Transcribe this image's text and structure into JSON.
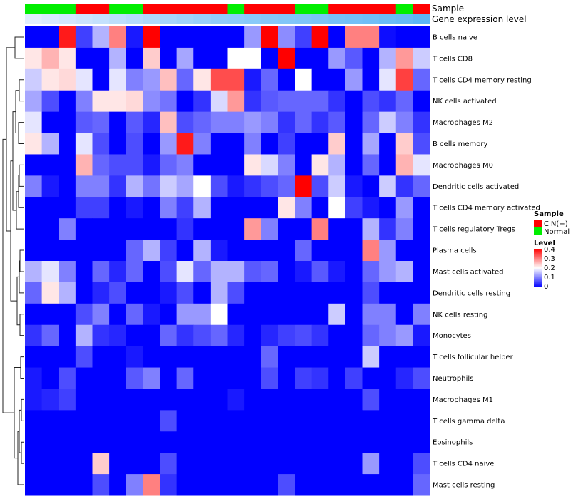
{
  "chart_data": {
    "type": "heatmap",
    "rows": [
      "B cells naive",
      "T cells CD8",
      "T cells CD4 memory resting",
      "NK cells activated",
      "Macrophages M2",
      "B cells memory",
      "Macrophages M0",
      "Dendritic cells activated",
      "T cells CD4 memory activated",
      "T cells regulatory  Tregs",
      "Plasma cells",
      "Mast cells activated",
      "Dendritic cells resting",
      "NK cells resting",
      "Monocytes",
      "T cells follicular helper",
      "Neutrophils",
      "Macrophages M1",
      "T cells gamma delta",
      "Eosinophils",
      "T cells CD4 naive",
      "Mast cells resting"
    ],
    "columns_count": 24,
    "sample": [
      "Normal",
      "Normal",
      "Normal",
      "CIN(+)",
      "CIN(+)",
      "Normal",
      "Normal",
      "CIN(+)",
      "CIN(+)",
      "CIN(+)",
      "CIN(+)",
      "CIN(+)",
      "Normal",
      "CIN(+)",
      "CIN(+)",
      "CIN(+)",
      "Normal",
      "Normal",
      "CIN(+)",
      "CIN(+)",
      "CIN(+)",
      "CIN(+)",
      "Normal",
      "CIN(+)"
    ],
    "gene_expression_level": [
      0.05,
      0.1,
      0.15,
      0.2,
      0.25,
      0.3,
      0.35,
      0.4,
      0.45,
      0.5,
      0.55,
      0.6,
      0.62,
      0.65,
      0.68,
      0.7,
      0.72,
      0.75,
      0.78,
      0.8,
      0.83,
      0.86,
      0.9,
      0.95
    ],
    "values": [
      [
        0.0,
        0.0,
        0.38,
        0.05,
        0.14,
        0.3,
        0.02,
        0.4,
        0.0,
        0.0,
        0.0,
        0.0,
        0.0,
        0.12,
        0.4,
        0.11,
        0.05,
        0.4,
        0.0,
        0.3,
        0.3,
        0.01,
        0.0,
        0.0
      ],
      [
        0.22,
        0.26,
        0.22,
        0.0,
        0.0,
        0.14,
        0.0,
        0.24,
        0.0,
        0.13,
        0.0,
        0.0,
        0.2,
        0.2,
        0.0,
        0.4,
        0.0,
        0.0,
        0.12,
        0.07,
        0.0,
        0.14,
        0.28,
        0.16
      ],
      [
        0.16,
        0.22,
        0.23,
        0.18,
        0.0,
        0.18,
        0.1,
        0.12,
        0.25,
        0.08,
        0.22,
        0.34,
        0.34,
        0.02,
        0.08,
        0.0,
        0.2,
        0.0,
        0.0,
        0.12,
        0.0,
        0.18,
        0.35,
        0.08
      ],
      [
        0.13,
        0.06,
        0.0,
        0.1,
        0.22,
        0.22,
        0.23,
        0.11,
        0.09,
        0.0,
        0.04,
        0.17,
        0.28,
        0.04,
        0.07,
        0.08,
        0.08,
        0.08,
        0.04,
        0.0,
        0.06,
        0.04,
        0.08,
        0.0
      ],
      [
        0.18,
        0.0,
        0.0,
        0.07,
        0.08,
        0.0,
        0.07,
        0.03,
        0.25,
        0.06,
        0.08,
        0.1,
        0.1,
        0.12,
        0.1,
        0.04,
        0.08,
        0.04,
        0.07,
        0.0,
        0.08,
        0.16,
        0.1,
        0.04
      ],
      [
        0.22,
        0.14,
        0.0,
        0.18,
        0.06,
        0.0,
        0.06,
        0.0,
        0.12,
        0.38,
        0.1,
        0.0,
        0.0,
        0.1,
        0.0,
        0.05,
        0.0,
        0.0,
        0.24,
        0.0,
        0.13,
        0.0,
        0.24,
        0.06
      ],
      [
        0.0,
        0.0,
        0.0,
        0.26,
        0.08,
        0.06,
        0.06,
        0.02,
        0.08,
        0.1,
        0.0,
        0.0,
        0.0,
        0.22,
        0.17,
        0.1,
        0.0,
        0.22,
        0.14,
        0.0,
        0.08,
        0.0,
        0.26,
        0.18
      ],
      [
        0.1,
        0.02,
        0.0,
        0.1,
        0.1,
        0.04,
        0.14,
        0.09,
        0.16,
        0.13,
        0.2,
        0.06,
        0.02,
        0.04,
        0.06,
        0.08,
        0.4,
        0.06,
        0.16,
        0.02,
        0.0,
        0.16,
        0.04,
        0.08
      ],
      [
        0.0,
        0.0,
        0.0,
        0.05,
        0.05,
        0.0,
        0.02,
        0.0,
        0.1,
        0.05,
        0.14,
        0.0,
        0.0,
        0.0,
        0.0,
        0.22,
        0.1,
        0.0,
        0.2,
        0.05,
        0.02,
        0.0,
        0.12,
        0.0
      ],
      [
        0.0,
        0.0,
        0.1,
        0.0,
        0.0,
        0.0,
        0.0,
        0.0,
        0.0,
        0.04,
        0.0,
        0.0,
        0.0,
        0.28,
        0.1,
        0.0,
        0.0,
        0.3,
        0.0,
        0.0,
        0.14,
        0.04,
        0.1,
        0.0
      ],
      [
        0.0,
        0.0,
        0.0,
        0.0,
        0.0,
        0.0,
        0.08,
        0.14,
        0.05,
        0.0,
        0.14,
        0.02,
        0.0,
        0.0,
        0.0,
        0.0,
        0.08,
        0.0,
        0.0,
        0.0,
        0.3,
        0.12,
        0.0,
        0.0
      ],
      [
        0.14,
        0.18,
        0.1,
        0.0,
        0.08,
        0.03,
        0.08,
        0.0,
        0.06,
        0.18,
        0.08,
        0.14,
        0.14,
        0.07,
        0.08,
        0.0,
        0.02,
        0.07,
        0.02,
        0.0,
        0.08,
        0.12,
        0.14,
        0.0
      ],
      [
        0.08,
        0.22,
        0.14,
        0.0,
        0.03,
        0.06,
        0.0,
        0.0,
        0.02,
        0.06,
        0.0,
        0.14,
        0.06,
        0.0,
        0.0,
        0.0,
        0.0,
        0.0,
        0.0,
        0.0,
        0.06,
        0.0,
        0.0,
        0.0
      ],
      [
        0.0,
        0.0,
        0.0,
        0.06,
        0.1,
        0.0,
        0.08,
        0.02,
        0.0,
        0.12,
        0.12,
        0.2,
        0.0,
        0.0,
        0.0,
        0.0,
        0.0,
        0.0,
        0.16,
        0.0,
        0.1,
        0.1,
        0.0,
        0.1
      ],
      [
        0.04,
        0.08,
        0.0,
        0.14,
        0.04,
        0.03,
        0.0,
        0.0,
        0.08,
        0.04,
        0.06,
        0.08,
        0.03,
        0.0,
        0.03,
        0.05,
        0.06,
        0.04,
        0.0,
        0.0,
        0.08,
        0.1,
        0.12,
        0.02
      ],
      [
        0.0,
        0.0,
        0.0,
        0.06,
        0.0,
        0.0,
        0.02,
        0.0,
        0.0,
        0.0,
        0.0,
        0.0,
        0.0,
        0.0,
        0.08,
        0.0,
        0.0,
        0.0,
        0.0,
        0.0,
        0.16,
        0.0,
        0.0,
        0.0
      ],
      [
        0.02,
        0.0,
        0.06,
        0.0,
        0.0,
        0.0,
        0.07,
        0.1,
        0.0,
        0.08,
        0.0,
        0.0,
        0.0,
        0.0,
        0.06,
        0.0,
        0.05,
        0.04,
        0.0,
        0.05,
        0.0,
        0.0,
        0.03,
        0.06
      ],
      [
        0.02,
        0.03,
        0.05,
        0.0,
        0.0,
        0.0,
        0.0,
        0.0,
        0.0,
        0.0,
        0.0,
        0.0,
        0.02,
        0.0,
        0.0,
        0.0,
        0.0,
        0.0,
        0.0,
        0.0,
        0.06,
        0.0,
        0.0,
        0.0
      ],
      [
        0.0,
        0.0,
        0.0,
        0.0,
        0.0,
        0.0,
        0.0,
        0.0,
        0.06,
        0.0,
        0.0,
        0.0,
        0.0,
        0.0,
        0.0,
        0.0,
        0.0,
        0.0,
        0.0,
        0.0,
        0.0,
        0.0,
        0.0,
        0.0
      ],
      [
        0.0,
        0.0,
        0.0,
        0.0,
        0.0,
        0.0,
        0.0,
        0.0,
        0.0,
        0.0,
        0.0,
        0.0,
        0.0,
        0.0,
        0.0,
        0.0,
        0.0,
        0.0,
        0.0,
        0.0,
        0.0,
        0.0,
        0.0,
        0.0
      ],
      [
        0.0,
        0.0,
        0.0,
        0.0,
        0.24,
        0.0,
        0.0,
        0.0,
        0.06,
        0.0,
        0.0,
        0.0,
        0.0,
        0.0,
        0.0,
        0.0,
        0.0,
        0.0,
        0.0,
        0.0,
        0.12,
        0.0,
        0.0,
        0.06
      ],
      [
        0.0,
        0.0,
        0.0,
        0.0,
        0.06,
        0.0,
        0.1,
        0.3,
        0.04,
        0.0,
        0.0,
        0.0,
        0.0,
        0.0,
        0.0,
        0.06,
        0.0,
        0.0,
        0.0,
        0.0,
        0.0,
        0.0,
        0.0,
        0.08
      ]
    ],
    "annotation_labels": {
      "sample": "Sample",
      "gene": "Gene expression level"
    },
    "legend": {
      "sample_title": "Sample",
      "sample_entries": [
        {
          "label": "CIN(+)",
          "color": "#ff0000"
        },
        {
          "label": "Normal",
          "color": "#00ee00"
        }
      ],
      "level_title": "Level",
      "level_ticks": [
        "0.4",
        "0.3",
        "0.2",
        "0.1",
        "0"
      ],
      "level_range": [
        0,
        0.4
      ]
    },
    "colors": {
      "low": "#0000ff",
      "mid": "#ffffff",
      "high": "#ff0000",
      "gene_low": "#e8f0ff",
      "gene_high": "#56b4f5"
    }
  }
}
